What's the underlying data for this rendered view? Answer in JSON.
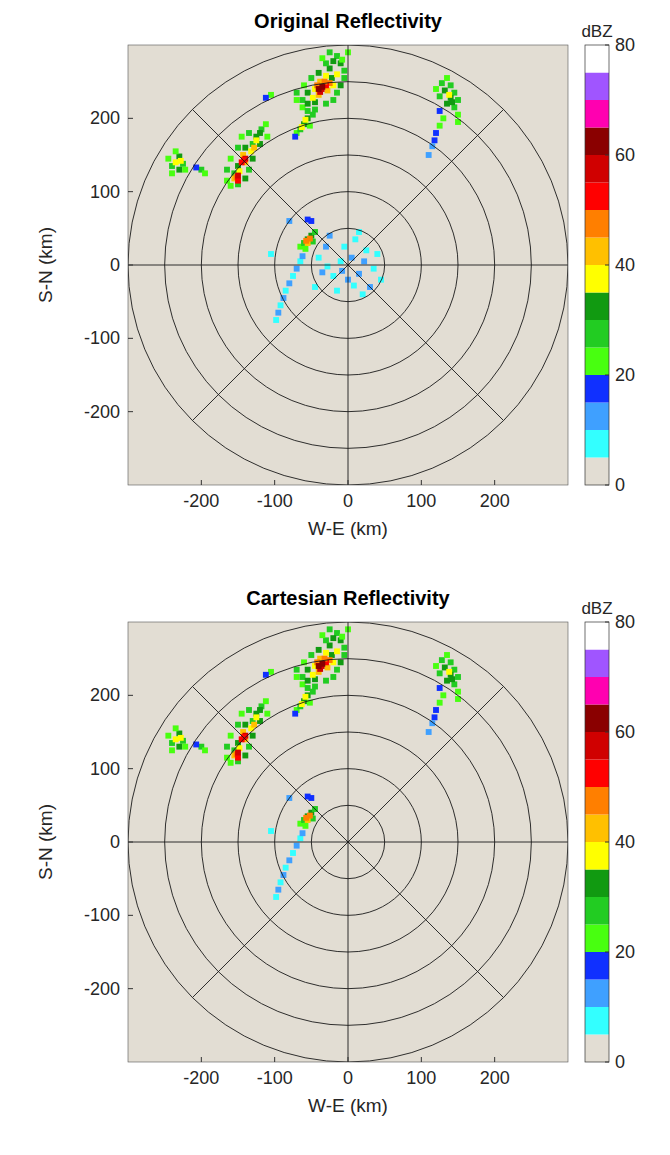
{
  "chart_data": [
    {
      "type": "heatmap",
      "title": "Original Reflectivity",
      "xlabel": "W-E (km)",
      "ylabel": "S-N (km)",
      "xlim": [
        -300,
        300
      ],
      "ylim": [
        -300,
        300
      ],
      "xticks": [
        -200,
        -100,
        0,
        100,
        200
      ],
      "yticks": [
        -200,
        -100,
        0,
        100,
        200
      ],
      "grid": true,
      "rings": [
        50,
        100,
        150,
        200,
        250,
        300
      ],
      "spokes": [
        0,
        45,
        90,
        135
      ],
      "colorbar_label": "dBZ",
      "clim": [
        0,
        80
      ],
      "cticks": [
        0,
        20,
        40,
        60,
        80
      ],
      "x": [
        -70,
        -62,
        -55,
        -45,
        -70,
        -62,
        -55,
        -45,
        -30,
        -20,
        -15,
        -10,
        -5,
        -5,
        -10,
        -15,
        -20,
        -25,
        -60,
        -50,
        -40,
        -30,
        -55,
        -48,
        -22,
        -15,
        -8,
        0,
        -25,
        -35,
        -45,
        -40,
        -28,
        -20,
        -30,
        -38,
        -25,
        -42,
        -30,
        -36,
        -38,
        -32,
        -35,
        -40,
        -165,
        -160,
        -155,
        -165,
        -150,
        -140,
        -150,
        -160,
        -135,
        -130,
        -140,
        -150,
        -130,
        -125,
        -118,
        -112,
        -135,
        -120,
        -110,
        -145,
        -155,
        -148,
        -140,
        -132,
        -125,
        -120,
        -143,
        -152,
        -150,
        -145,
        -140,
        -150,
        -142,
        -128,
        -245,
        -240,
        -230,
        -225,
        -240,
        -230,
        -235,
        -235,
        -228,
        -222,
        -200,
        -195,
        -207,
        -105,
        -112,
        -70,
        -65,
        -60,
        -55,
        -48,
        -58,
        -63,
        -52,
        -72,
        120,
        128,
        135,
        140,
        132,
        145,
        150,
        140,
        145,
        150,
        135,
        125,
        130,
        125,
        120,
        150,
        138,
        142,
        118,
        115,
        125,
        -65,
        -60,
        -55,
        -50,
        -45,
        -58,
        -48,
        -55,
        -52,
        -57,
        -50,
        -55,
        -70,
        -75,
        -80,
        -85,
        -88,
        -92,
        -95,
        -98,
        -65,
        -62,
        -80,
        -105,
        110,
        5,
        -10,
        15,
        -20,
        25,
        -30,
        35,
        -35,
        10,
        -15,
        30,
        -40,
        20,
        -25,
        40,
        0,
        -5,
        -45,
        45,
        15,
        -8,
        8,
        -28,
        22
      ],
      "y": [
        225,
        215,
        210,
        212,
        235,
        225,
        220,
        222,
        220,
        225,
        235,
        245,
        255,
        265,
        275,
        285,
        278,
        268,
        245,
        255,
        262,
        275,
        235,
        228,
        255,
        260,
        280,
        290,
        290,
        282,
        240,
        232,
        238,
        245,
        258,
        250,
        248,
        245,
        245,
        240,
        236,
        250,
        243,
        240,
        115,
        108,
        125,
        130,
        110,
        118,
        135,
        145,
        130,
        145,
        160,
        160,
        165,
        175,
        185,
        192,
        180,
        165,
        175,
        175,
        118,
        128,
        140,
        155,
        170,
        180,
        150,
        120,
        115,
        140,
        145,
        122,
        143,
        160,
        145,
        135,
        148,
        138,
        125,
        130,
        155,
        140,
        142,
        130,
        130,
        125,
        133,
        232,
        228,
        180,
        185,
        192,
        200,
        205,
        198,
        188,
        190,
        175,
        240,
        248,
        255,
        245,
        238,
        235,
        225,
        228,
        215,
        205,
        220,
        230,
        200,
        190,
        180,
        195,
        232,
        222,
        170,
        162,
        210,
        25,
        30,
        35,
        40,
        45,
        22,
        32,
        30,
        36,
        33,
        60,
        62,
        -5,
        -15,
        -25,
        -35,
        -45,
        -55,
        -65,
        -75,
        5,
        12,
        60,
        15,
        150,
        10,
        5,
        -12,
        -15,
        20,
        25,
        -5,
        -10,
        35,
        -35,
        -30,
        10,
        -40,
        40,
        15,
        -20,
        25,
        -30,
        -20,
        45,
        -8,
        -28,
        -2,
        5
      ],
      "values": [
        20,
        22,
        25,
        28,
        25,
        28,
        30,
        32,
        28,
        25,
        28,
        30,
        28,
        25,
        30,
        28,
        32,
        34,
        22,
        28,
        30,
        28,
        32,
        36,
        33,
        35,
        22,
        20,
        25,
        22,
        38,
        40,
        40,
        38,
        38,
        42,
        45,
        48,
        52,
        55,
        58,
        48,
        62,
        60,
        22,
        20,
        28,
        25,
        25,
        30,
        30,
        22,
        28,
        32,
        30,
        25,
        28,
        30,
        28,
        22,
        25,
        32,
        22,
        22,
        40,
        38,
        40,
        38,
        36,
        34,
        42,
        48,
        52,
        50,
        55,
        56,
        50,
        42,
        22,
        28,
        30,
        25,
        22,
        30,
        22,
        38,
        36,
        20,
        25,
        20,
        18,
        22,
        15,
        22,
        28,
        32,
        30,
        25,
        38,
        35,
        22,
        18,
        22,
        25,
        22,
        28,
        30,
        25,
        28,
        32,
        25,
        22,
        30,
        25,
        22,
        20,
        18,
        20,
        36,
        34,
        15,
        12,
        18,
        22,
        28,
        32,
        30,
        25,
        20,
        25,
        40,
        45,
        48,
        18,
        15,
        10,
        8,
        10,
        8,
        10,
        8,
        10,
        7,
        8,
        10,
        10,
        8,
        10,
        10,
        8,
        10,
        8,
        7,
        10,
        8,
        10,
        8,
        7,
        10,
        8,
        8,
        10,
        7,
        10,
        8,
        7,
        8,
        7,
        12,
        9,
        9,
        11
      ]
    },
    {
      "type": "heatmap",
      "title": "Cartesian Reflectivity",
      "xlabel": "W-E (km)",
      "ylabel": "S-N (km)",
      "xlim": [
        -300,
        300
      ],
      "ylim": [
        -300,
        300
      ],
      "xticks": [
        -200,
        -100,
        0,
        100,
        200
      ],
      "yticks": [
        -200,
        -100,
        0,
        100,
        200
      ],
      "grid": true,
      "rings": [
        50,
        100,
        150,
        200,
        250,
        300
      ],
      "spokes": [
        0,
        45,
        90,
        135
      ],
      "colorbar_label": "dBZ",
      "clim": [
        0,
        80
      ],
      "cticks": [
        0,
        20,
        40,
        60,
        80
      ],
      "x": [
        -70,
        -62,
        -55,
        -45,
        -70,
        -62,
        -55,
        -45,
        -30,
        -20,
        -15,
        -10,
        -5,
        -5,
        -10,
        -15,
        -20,
        -25,
        -60,
        -50,
        -40,
        -30,
        -55,
        -48,
        -22,
        -15,
        -8,
        0,
        -25,
        -35,
        -45,
        -40,
        -28,
        -20,
        -30,
        -38,
        -25,
        -42,
        -30,
        -36,
        -38,
        -32,
        -35,
        -40,
        -165,
        -160,
        -155,
        -165,
        -150,
        -140,
        -150,
        -160,
        -135,
        -130,
        -140,
        -150,
        -130,
        -125,
        -118,
        -112,
        -135,
        -120,
        -110,
        -145,
        -155,
        -148,
        -140,
        -132,
        -125,
        -120,
        -143,
        -152,
        -150,
        -145,
        -140,
        -150,
        -142,
        -128,
        -245,
        -240,
        -230,
        -225,
        -240,
        -230,
        -235,
        -235,
        -228,
        -222,
        -200,
        -195,
        -207,
        -105,
        -112,
        -70,
        -65,
        -60,
        -55,
        -48,
        -58,
        -63,
        -52,
        -72,
        120,
        128,
        135,
        140,
        132,
        145,
        150,
        140,
        145,
        150,
        135,
        125,
        130,
        125,
        120,
        150,
        138,
        142,
        118,
        115,
        125,
        -65,
        -60,
        -55,
        -50,
        -45,
        -58,
        -48,
        -55,
        -52,
        -57,
        -50,
        -55,
        -70,
        -75,
        -80,
        -85,
        -88,
        -92,
        -95,
        -98,
        -65,
        -62,
        -80,
        -105,
        110
      ],
      "y": [
        225,
        215,
        210,
        212,
        235,
        225,
        220,
        222,
        220,
        225,
        235,
        245,
        255,
        265,
        275,
        285,
        278,
        268,
        245,
        255,
        262,
        275,
        235,
        228,
        255,
        260,
        280,
        290,
        290,
        282,
        240,
        232,
        238,
        245,
        258,
        250,
        248,
        245,
        245,
        240,
        236,
        250,
        243,
        240,
        115,
        108,
        125,
        130,
        110,
        118,
        135,
        145,
        130,
        145,
        160,
        160,
        165,
        175,
        185,
        192,
        180,
        165,
        175,
        175,
        118,
        128,
        140,
        155,
        170,
        180,
        150,
        120,
        115,
        140,
        145,
        122,
        143,
        160,
        145,
        135,
        148,
        138,
        125,
        130,
        155,
        140,
        142,
        130,
        130,
        125,
        133,
        232,
        228,
        180,
        185,
        192,
        200,
        205,
        198,
        188,
        190,
        175,
        240,
        248,
        255,
        245,
        238,
        235,
        225,
        228,
        215,
        205,
        220,
        230,
        200,
        190,
        180,
        195,
        232,
        222,
        170,
        162,
        210,
        25,
        30,
        35,
        40,
        45,
        22,
        32,
        30,
        36,
        33,
        60,
        62,
        -5,
        -15,
        -25,
        -35,
        -45,
        -55,
        -65,
        -75,
        5,
        12,
        60,
        15,
        150
      ],
      "values": [
        20,
        22,
        25,
        28,
        25,
        28,
        30,
        32,
        28,
        25,
        28,
        30,
        28,
        25,
        30,
        28,
        32,
        34,
        22,
        28,
        30,
        28,
        32,
        36,
        33,
        35,
        22,
        20,
        25,
        22,
        38,
        40,
        40,
        38,
        38,
        42,
        45,
        48,
        52,
        55,
        58,
        48,
        62,
        60,
        22,
        20,
        28,
        25,
        25,
        30,
        30,
        22,
        28,
        32,
        30,
        25,
        28,
        30,
        28,
        22,
        25,
        32,
        22,
        22,
        40,
        38,
        40,
        38,
        36,
        34,
        42,
        48,
        52,
        50,
        55,
        56,
        50,
        42,
        22,
        28,
        30,
        25,
        22,
        30,
        22,
        38,
        36,
        20,
        25,
        20,
        18,
        22,
        15,
        22,
        28,
        32,
        30,
        25,
        38,
        35,
        22,
        18,
        22,
        25,
        22,
        28,
        30,
        25,
        28,
        32,
        25,
        22,
        30,
        25,
        22,
        20,
        18,
        20,
        36,
        34,
        15,
        12,
        18,
        22,
        28,
        32,
        30,
        25,
        20,
        25,
        40,
        45,
        48,
        18,
        15,
        10,
        8,
        10,
        8,
        10,
        8,
        10,
        7,
        8,
        10,
        10,
        8,
        10
      ]
    }
  ]
}
